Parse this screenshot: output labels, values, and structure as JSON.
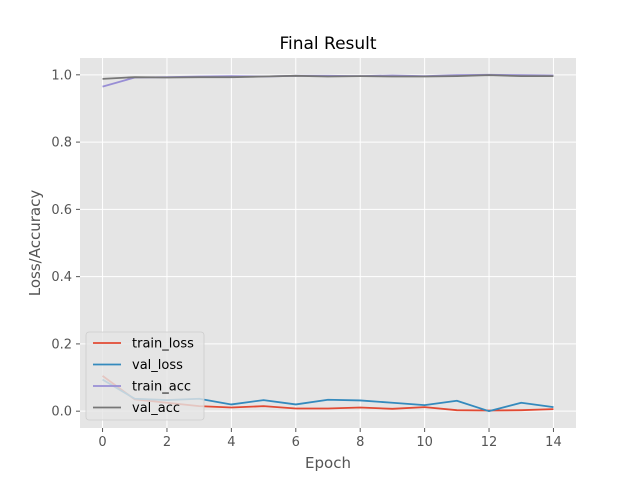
{
  "chart_data": {
    "type": "line",
    "title": "Final Result",
    "xlabel": "Epoch",
    "ylabel": "Loss/Accuracy",
    "xlim": [
      -0.7,
      14.7
    ],
    "ylim": [
      -0.05,
      1.05
    ],
    "xticks": [
      0,
      2,
      4,
      6,
      8,
      10,
      12,
      14
    ],
    "yticks": [
      0.0,
      0.2,
      0.4,
      0.6,
      0.8,
      1.0
    ],
    "xtick_labels": [
      "0",
      "2",
      "4",
      "6",
      "8",
      "10",
      "12",
      "14"
    ],
    "ytick_labels": [
      "0.0",
      "0.2",
      "0.4",
      "0.6",
      "0.8",
      "1.0"
    ],
    "grid": true,
    "legend_position": "lower-left",
    "x": [
      0,
      1,
      2,
      3,
      4,
      5,
      6,
      7,
      8,
      9,
      10,
      11,
      12,
      13,
      14
    ],
    "series": [
      {
        "name": "train_loss",
        "color": "#E24A33",
        "values": [
          0.105,
          0.035,
          0.025,
          0.015,
          0.011,
          0.015,
          0.008,
          0.008,
          0.011,
          0.007,
          0.012,
          0.003,
          0.002,
          0.003,
          0.006
        ]
      },
      {
        "name": "val_loss",
        "color": "#348ABD",
        "values": [
          0.094,
          0.037,
          0.033,
          0.037,
          0.02,
          0.033,
          0.02,
          0.034,
          0.032,
          0.025,
          0.018,
          0.031,
          0.0,
          0.025,
          0.012
        ]
      },
      {
        "name": "train_acc",
        "color": "#988ED5",
        "values": [
          0.965,
          0.992,
          0.993,
          0.995,
          0.996,
          0.995,
          0.997,
          0.997,
          0.996,
          0.998,
          0.996,
          0.999,
          1.0,
          0.999,
          0.998
        ]
      },
      {
        "name": "val_acc",
        "color": "#777777",
        "values": [
          0.988,
          0.993,
          0.992,
          0.993,
          0.993,
          0.995,
          0.997,
          0.995,
          0.996,
          0.995,
          0.995,
          0.996,
          0.999,
          0.996,
          0.996
        ]
      }
    ]
  }
}
